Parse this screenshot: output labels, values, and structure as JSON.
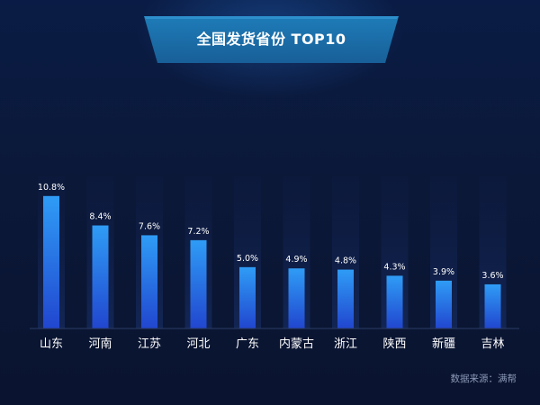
{
  "header": {
    "title": "全国发货省份 TOP10"
  },
  "footer": {
    "source": "数据来源：满帮"
  },
  "colors": {
    "background": "#0b1838",
    "banner": "#1b6fa8",
    "track": "#0f1e48",
    "bar_top": "#2f9cf6",
    "bar_bottom": "#2146cf",
    "text": "#ffffff"
  },
  "chart_data": {
    "type": "bar",
    "categories": [
      "山东",
      "河南",
      "江苏",
      "河北",
      "广东",
      "内蒙古",
      "浙江",
      "陕西",
      "新疆",
      "吉林"
    ],
    "values": [
      10.8,
      8.4,
      7.6,
      7.2,
      5.0,
      4.9,
      4.8,
      4.3,
      3.9,
      3.6
    ],
    "value_labels": [
      "10.8%",
      "8.4%",
      "7.6%",
      "7.2%",
      "5.0%",
      "4.9%",
      "4.8%",
      "4.3%",
      "3.9%",
      "3.6%"
    ],
    "unit": "%",
    "ylim": [
      0,
      12.4
    ],
    "grid": false,
    "legend": "none"
  }
}
